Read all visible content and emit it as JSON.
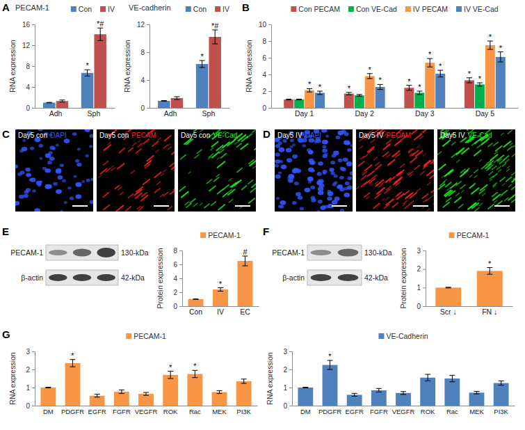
{
  "panel_labels": [
    "A",
    "B",
    "C",
    "D",
    "E",
    "F",
    "G"
  ],
  "chart_data": [
    {
      "type": "bar",
      "title": "PECAM-1",
      "y_label": "RNA expression",
      "categories": [
        "Adh",
        "Sph"
      ],
      "series": [
        {
          "name": "Con",
          "color": "#4f81bd",
          "values": [
            1.0,
            6.7
          ],
          "errors": [
            0.05,
            0.6
          ],
          "annotations": [
            null,
            "*"
          ]
        },
        {
          "name": "IV",
          "color": "#c0504d",
          "values": [
            1.3,
            14.1
          ],
          "errors": [
            0.2,
            1.2
          ],
          "annotations": [
            null,
            "*#"
          ]
        }
      ],
      "ylim": [
        0,
        16
      ],
      "yticks": [
        0,
        4,
        8,
        12,
        16
      ],
      "legend": "top"
    },
    {
      "type": "bar",
      "title": "VE-cadherin",
      "y_label": "RNA expression",
      "categories": [
        "Adh",
        "Sph"
      ],
      "series": [
        {
          "name": "Con",
          "color": "#4f81bd",
          "values": [
            1.0,
            6.3
          ],
          "errors": [
            0.05,
            0.5
          ],
          "annotations": [
            null,
            "*"
          ]
        },
        {
          "name": "IV",
          "color": "#c0504d",
          "values": [
            1.4,
            10.2
          ],
          "errors": [
            0.2,
            1.0
          ],
          "annotations": [
            null,
            "*#"
          ]
        }
      ],
      "ylim": [
        0,
        12
      ],
      "yticks": [
        0,
        4,
        8,
        12
      ],
      "legend": "top"
    },
    {
      "type": "bar",
      "y_label": "RNA expression",
      "categories": [
        "Day 1",
        "Day 2",
        "Day 3",
        "Day 5"
      ],
      "series": [
        {
          "name": "Con PECAM",
          "color": "#c0504d",
          "values": [
            1.0,
            1.7,
            2.4,
            3.3
          ],
          "errors": [
            0.05,
            0.15,
            0.3,
            0.3
          ],
          "annotations": [
            null,
            "*",
            "*",
            "*"
          ]
        },
        {
          "name": "Con VE-Cad",
          "color": "#00b050",
          "values": [
            1.0,
            1.5,
            1.8,
            2.8
          ],
          "errors": [
            0.05,
            0.1,
            0.2,
            0.2
          ],
          "annotations": [
            null,
            null,
            "*",
            "*"
          ]
        },
        {
          "name": "IV PECAM",
          "color": "#f79646",
          "values": [
            2.1,
            3.8,
            5.4,
            7.5
          ],
          "errors": [
            0.2,
            0.3,
            0.5,
            0.5
          ],
          "annotations": [
            "*",
            "*",
            "*",
            "*"
          ]
        },
        {
          "name": "IV VE-Cad",
          "color": "#4f81bd",
          "values": [
            1.8,
            2.5,
            4.1,
            6.1
          ],
          "errors": [
            0.2,
            0.3,
            0.4,
            0.6
          ],
          "annotations": [
            "*",
            "*",
            "*",
            "*"
          ]
        }
      ],
      "ylim": [
        0,
        10
      ],
      "yticks": [
        0,
        2,
        4,
        6,
        8,
        10
      ],
      "legend": "top"
    },
    {
      "type": "bar",
      "y_label": "Protein expression",
      "categories": [
        "Con",
        "IV",
        "EC"
      ],
      "series": [
        {
          "name": "PECAM-1",
          "color": "#f79646",
          "values": [
            1.0,
            2.4,
            6.5
          ],
          "errors": [
            0.03,
            0.25,
            0.7
          ],
          "annotations": [
            null,
            "*",
            "#"
          ]
        }
      ],
      "ylim": [
        0,
        8
      ],
      "yticks": [
        0,
        2,
        4,
        6,
        8
      ],
      "legend": "top"
    },
    {
      "type": "bar",
      "y_label": "Protein expression",
      "categories": [
        "Scr ↓",
        "FN ↓"
      ],
      "series": [
        {
          "name": "PECAM-1",
          "color": "#f79646",
          "values": [
            1.0,
            1.9
          ],
          "errors": [
            0.02,
            0.18
          ],
          "annotations": [
            null,
            "*"
          ]
        }
      ],
      "ylim": [
        0,
        3
      ],
      "yticks": [
        0,
        1,
        2,
        3
      ],
      "legend": "top"
    },
    {
      "type": "bar",
      "y_label": "RNA expression",
      "categories": [
        "DM",
        "PDGFR",
        "EGFR",
        "FGFR",
        "VEGFR",
        "ROK",
        "Rac",
        "MEK",
        "PI3K"
      ],
      "series": [
        {
          "name": "PECAM-1",
          "color": "#f79646",
          "values": [
            1.0,
            2.35,
            0.55,
            0.77,
            0.65,
            1.7,
            1.75,
            0.75,
            1.35
          ],
          "errors": [
            0.02,
            0.2,
            0.08,
            0.1,
            0.08,
            0.2,
            0.2,
            0.08,
            0.12
          ],
          "annotations": [
            null,
            "*",
            null,
            null,
            null,
            "*",
            "*",
            null,
            null
          ]
        }
      ],
      "ylim": [
        0,
        3
      ],
      "yticks": [
        0,
        1,
        2,
        3
      ],
      "legend": "top"
    },
    {
      "type": "bar",
      "y_label": "RNA expression",
      "categories": [
        "DM",
        "PDGFR",
        "EGFR",
        "FGFR",
        "VEGFR",
        "ROK",
        "Rac",
        "MEK",
        "PI3K"
      ],
      "series": [
        {
          "name": "VE-Cadherin",
          "color": "#4f81bd",
          "values": [
            1.0,
            2.25,
            0.6,
            0.85,
            0.7,
            1.55,
            1.5,
            0.72,
            1.25
          ],
          "errors": [
            0.02,
            0.25,
            0.08,
            0.1,
            0.08,
            0.18,
            0.18,
            0.07,
            0.12
          ],
          "annotations": [
            null,
            "*",
            null,
            null,
            null,
            null,
            null,
            null,
            null
          ]
        }
      ],
      "ylim": [
        0,
        3
      ],
      "yticks": [
        0,
        1,
        2,
        3
      ],
      "legend": "top"
    }
  ],
  "microscopy": [
    [
      {
        "prefix": "Day5 con",
        "stain": "DAPI",
        "color": "#3355ff"
      },
      {
        "prefix": "Day5 con",
        "stain": "PECAM",
        "color": "#ff2222"
      },
      {
        "prefix": "Day5 con",
        "stain": "VE-Cad",
        "color": "#22ee22"
      }
    ],
    [
      {
        "prefix": "Day5 IV",
        "stain": "DAPI",
        "color": "#3355ff"
      },
      {
        "prefix": "Day5 IV",
        "stain": "PECAM",
        "color": "#ff2222"
      },
      {
        "prefix": "Day5 IV",
        "stain": "VE-Cad",
        "color": "#22ee22"
      }
    ]
  ],
  "blots": [
    {
      "rows": [
        {
          "protein": "PECAM-1",
          "size": "130-kDa"
        },
        {
          "protein": "β-actin",
          "size": "42-kDa"
        }
      ]
    },
    {
      "rows": [
        {
          "protein": "PECAM-1",
          "size": "130-kDa"
        },
        {
          "protein": "β-actin",
          "size": "42-kDa"
        }
      ]
    }
  ]
}
